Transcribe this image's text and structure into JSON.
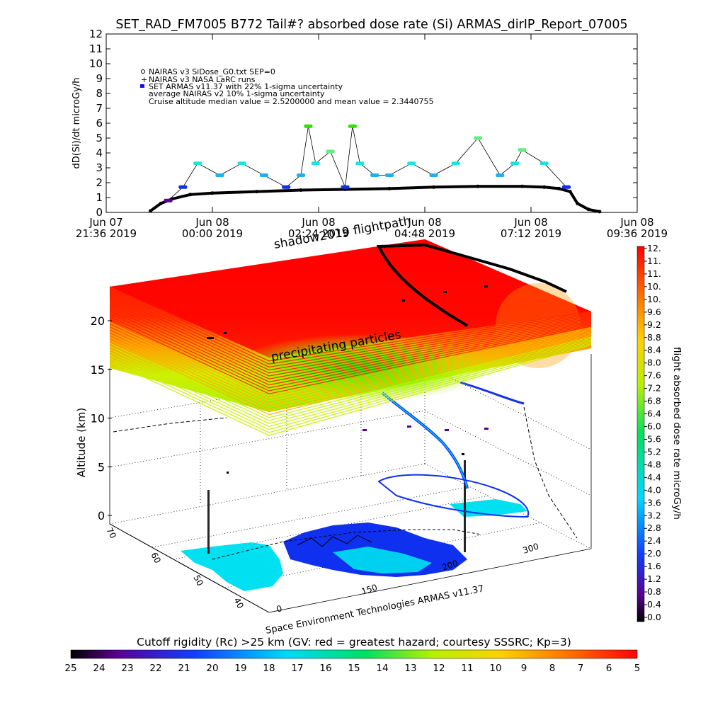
{
  "title": "SET_RAD_FM7005  B772 Tail#? absorbed dose rate (Si) ARMAS_dirIP_Report_07005",
  "chart_data": [
    {
      "type": "scatter",
      "title": "SET_RAD_FM7005  B772 Tail#? absorbed dose rate (Si) ARMAS_dirIP_Report_07005",
      "xlabel": "",
      "ylabel": "dD(Si)/dt microGy/h",
      "ylim": [
        0,
        12
      ],
      "y_ticks": [
        "0",
        "1",
        "2",
        "3",
        "4",
        "5",
        "6",
        "7",
        "8",
        "9",
        "10",
        "11",
        "12"
      ],
      "x_ticks": [
        {
          "line1": "Jun 07",
          "line2": "21:36 2019"
        },
        {
          "line1": "Jun 08",
          "line2": "00:00 2019"
        },
        {
          "line1": "Jun 08",
          "line2": "02:24 2019"
        },
        {
          "line1": "Jun 08",
          "line2": "04:48 2019"
        },
        {
          "line1": "Jun 08",
          "line2": "07:12 2019"
        },
        {
          "line1": "Jun 08",
          "line2": "09:36 2019"
        }
      ],
      "legend": [
        "NAIRAS v3 SiDose_G0.txt SEP=0",
        "NAIRAS v3 NASA LaRC runs",
        "SET ARMAS v11.37 with 22% 1-sigma uncertainty",
        "average NAIRAS v2 10% 1-sigma uncertainty",
        "Cruise altitude median value = 2.5200000 and mean value = 2.3440755"
      ],
      "legend_position": "top-left",
      "legend_marker_color": "#1010ff",
      "series": [
        {
          "name": "NAIRAS v3 SiDose_G0.txt SEP=0",
          "x": [
            "2019-06-07 22:36",
            "2019-06-07 22:50",
            "2019-06-07 23:05",
            "2019-06-07 23:30",
            "2019-06-08 00:00",
            "2019-06-08 01:00",
            "2019-06-08 02:00",
            "2019-06-08 03:00",
            "2019-06-08 04:00",
            "2019-06-08 05:00",
            "2019-06-08 06:00",
            "2019-06-08 07:00",
            "2019-06-08 07:30",
            "2019-06-08 07:50",
            "2019-06-08 08:05",
            "2019-06-08 08:15",
            "2019-06-08 08:30",
            "2019-06-08 08:45"
          ],
          "y": [
            0.1,
            0.6,
            0.9,
            1.2,
            1.3,
            1.4,
            1.5,
            1.55,
            1.6,
            1.7,
            1.75,
            1.75,
            1.7,
            1.6,
            1.4,
            0.6,
            0.2,
            0.05
          ]
        },
        {
          "name": "SET ARMAS v11.37 with 22% 1-sigma uncertainty",
          "x": [
            "2019-06-07 23:00",
            "2019-06-07 23:20",
            "2019-06-07 23:40",
            "2019-06-08 00:10",
            "2019-06-08 00:40",
            "2019-06-08 01:10",
            "2019-06-08 01:40",
            "2019-06-08 02:00",
            "2019-06-08 02:10",
            "2019-06-08 02:20",
            "2019-06-08 02:40",
            "2019-06-08 03:00",
            "2019-06-08 03:10",
            "2019-06-08 03:20",
            "2019-06-08 03:40",
            "2019-06-08 04:00",
            "2019-06-08 04:30",
            "2019-06-08 05:00",
            "2019-06-08 05:30",
            "2019-06-08 06:00",
            "2019-06-08 06:30",
            "2019-06-08 06:50",
            "2019-06-08 07:00",
            "2019-06-08 07:30",
            "2019-06-08 08:00"
          ],
          "y": [
            0.8,
            1.7,
            3.3,
            2.5,
            3.3,
            2.5,
            1.7,
            2.5,
            5.8,
            3.3,
            4.1,
            1.7,
            5.8,
            3.3,
            2.5,
            2.5,
            3.3,
            2.5,
            3.3,
            5.0,
            2.5,
            3.3,
            4.2,
            3.3,
            1.7
          ]
        }
      ]
    },
    {
      "type": "heatmap",
      "title": "",
      "zlabel": "Altitude (km)",
      "z_ticks": [
        "0",
        "5",
        "10",
        "15",
        "20"
      ],
      "lat_ticks": [
        "70",
        "60",
        "50",
        "40"
      ],
      "lon_ticks": [
        "0",
        "150",
        "200",
        "300"
      ],
      "annotations": [
        "shadow2019 flightpath",
        "precipitating particles",
        "Space Environment Technologies ARMAS v11.37"
      ],
      "colorbar_right": {
        "label": "flight absorbed dose rate microGy/h",
        "ticks": [
          "12.",
          "11.",
          "11.",
          "10.",
          "10.",
          "9.6",
          "9.2",
          "8.8",
          "8.4",
          "8.0",
          "7.6",
          "7.2",
          "6.8",
          "6.4",
          "6.0",
          "5.6",
          "5.2",
          "4.8",
          "4.4",
          "4.0",
          "3.6",
          "3.2",
          "2.8",
          "2.4",
          "2.0",
          "1.6",
          "1.2",
          "0.8",
          "0.4",
          "0.0"
        ]
      },
      "colorbar_bottom": {
        "label": "Cutoff rigidity (Rc) >25 km (GV: red = greatest hazard; courtesy SSSRC; Kp=3)",
        "ticks": [
          "25",
          "24",
          "23",
          "22",
          "21",
          "20",
          "19",
          "18",
          "17",
          "16",
          "15",
          "14",
          "13",
          "12",
          "11",
          "10",
          "9",
          "8",
          "7",
          "6",
          "5"
        ]
      }
    }
  ]
}
